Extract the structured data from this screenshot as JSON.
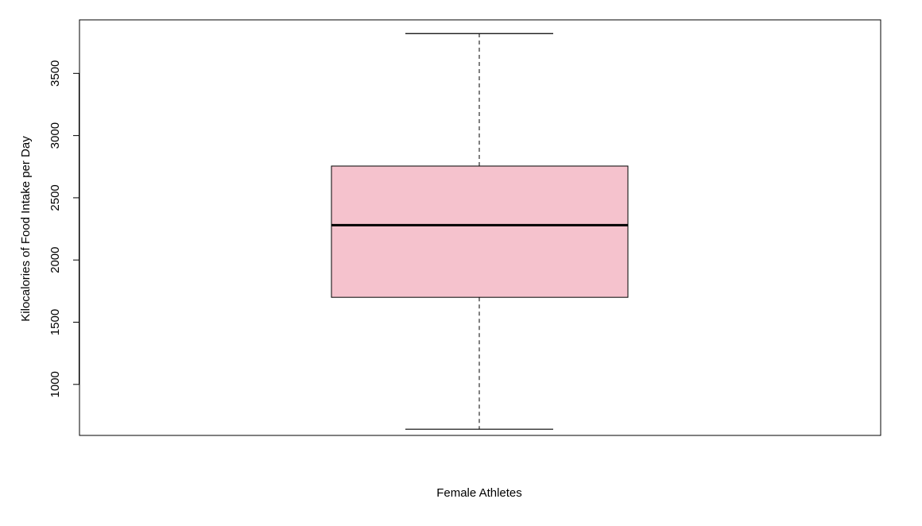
{
  "chart_data": {
    "type": "box",
    "xlabel": "Female Athletes",
    "ylabel": "Kilocalories of Food Intake per Day",
    "ylim": [
      590,
      3930
    ],
    "yticks": [
      1000,
      1500,
      2000,
      2500,
      3000,
      3500
    ],
    "ytick_labels": [
      "1000",
      "1500",
      "2000",
      "2500",
      "3000",
      "3500"
    ],
    "grid": false,
    "box": {
      "min": 640,
      "q1": 1700,
      "median": 2280,
      "q3": 2755,
      "max": 3820,
      "fill": "#f5c2cd"
    }
  }
}
